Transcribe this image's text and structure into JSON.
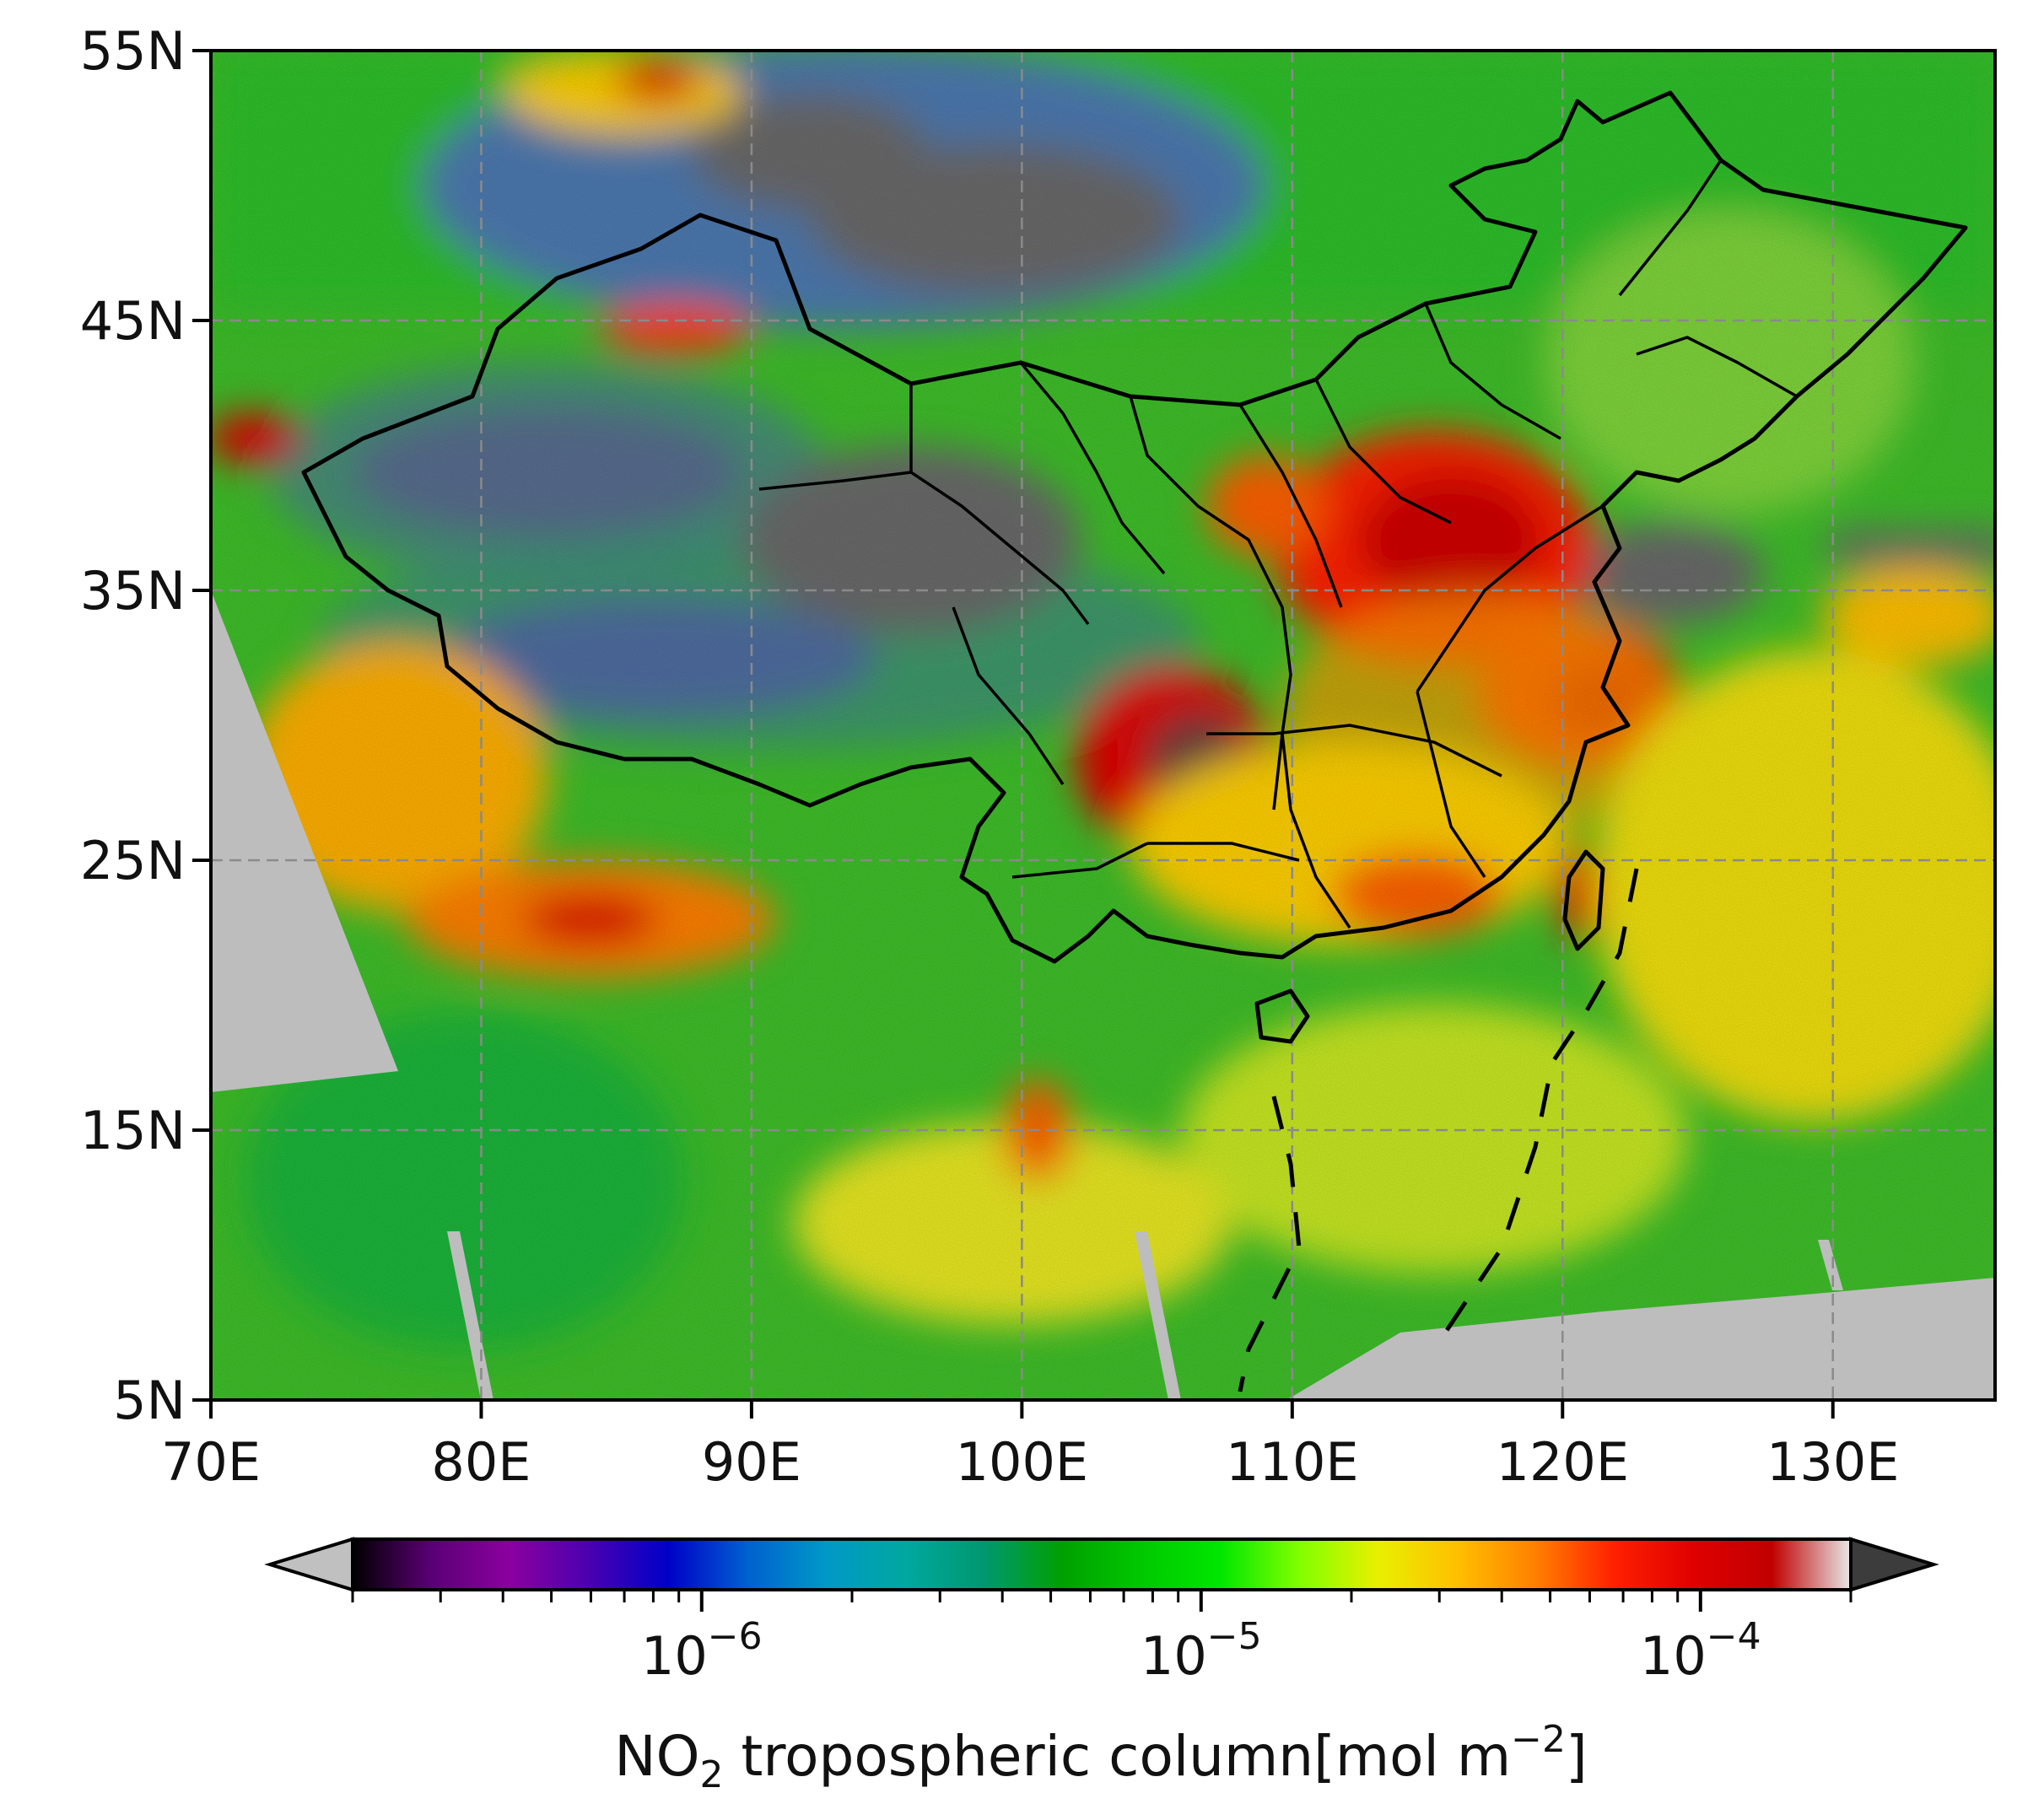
{
  "map": {
    "lat_labels": [
      "55N",
      "45N",
      "35N",
      "25N",
      "15N",
      "5N"
    ],
    "lon_labels": [
      "70E",
      "80E",
      "90E",
      "100E",
      "110E",
      "120E",
      "130E"
    ],
    "lat_values": [
      55,
      45,
      35,
      25,
      15,
      5
    ],
    "lon_values": [
      70,
      80,
      90,
      100,
      110,
      120,
      130
    ],
    "extent": {
      "lon_min": 70,
      "lon_max": 136,
      "lat_min": 5,
      "lat_max": 55
    },
    "gridlines": true,
    "no_data_color": "#bdbdbd",
    "high_value_region_color": "#e00000",
    "boundary_color": "#000000"
  },
  "colorbar": {
    "scale": "log",
    "min": 2e-07,
    "max": 0.0002,
    "tick_values": [
      1e-06,
      1e-05,
      0.0001
    ],
    "tick_labels": [
      {
        "base": "10",
        "exp": "−6"
      },
      {
        "base": "10",
        "exp": "−5"
      },
      {
        "base": "10",
        "exp": "−4"
      }
    ],
    "title_main": "NO",
    "title_sub": "2",
    "title_rest": " tropospheric column[mol m",
    "title_sup": "−2",
    "title_end": "]",
    "extend": "both",
    "under_color": "#c0c0c0",
    "over_color": "#3c3c3c",
    "colors": [
      "#000000",
      "#5a0075",
      "#8b00a0",
      "#4a00b0",
      "#0000c8",
      "#0060d0",
      "#0098c8",
      "#00a8a0",
      "#009870",
      "#00a000",
      "#00c800",
      "#00e600",
      "#80ff00",
      "#e8f000",
      "#ffc000",
      "#ff8000",
      "#ff2000",
      "#e00000",
      "#c00000",
      "#e8e8e8"
    ]
  }
}
